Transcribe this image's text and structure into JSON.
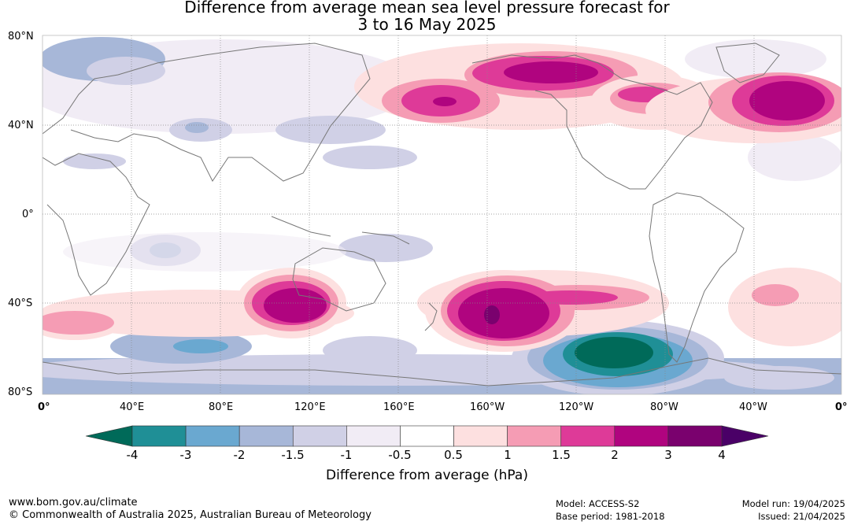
{
  "title_line1": "Difference from average mean sea level pressure forecast for",
  "title_line2": "3 to 16 May 2025",
  "lat_labels": [
    "80°N",
    "40°N",
    "0°",
    "40°S",
    "80°S"
  ],
  "lon_labels": [
    "0°",
    "40°E",
    "80°E",
    "120°E",
    "160°E",
    "160°W",
    "120°W",
    "80°W",
    "40°W",
    "0°"
  ],
  "colorbar": {
    "label": "Difference from average (hPa)",
    "ticks": [
      "-4",
      "-3",
      "-2",
      "-1.5",
      "-1",
      "-0.5",
      "0.5",
      "1",
      "1.5",
      "2",
      "3",
      "4"
    ],
    "colors": [
      "#006a59",
      "#1f8f96",
      "#6aa8d0",
      "#a7b7d8",
      "#d0d0e6",
      "#f1ecf5",
      "#ffffff",
      "#fde0e0",
      "#f59cb4",
      "#de3a98",
      "#b0047f",
      "#7a016e",
      "#4a0067"
    ]
  },
  "footer": {
    "url": "www.bom.gov.au/climate",
    "copyright": "© Commonwealth of Australia 2025, Australian Bureau of Meteorology",
    "model": "Model: ACCESS-S2",
    "base_period": "Base period: 1981-2018",
    "model_run": "Model run: 19/04/2025",
    "issued": "Issued: 21/04/2025"
  }
}
